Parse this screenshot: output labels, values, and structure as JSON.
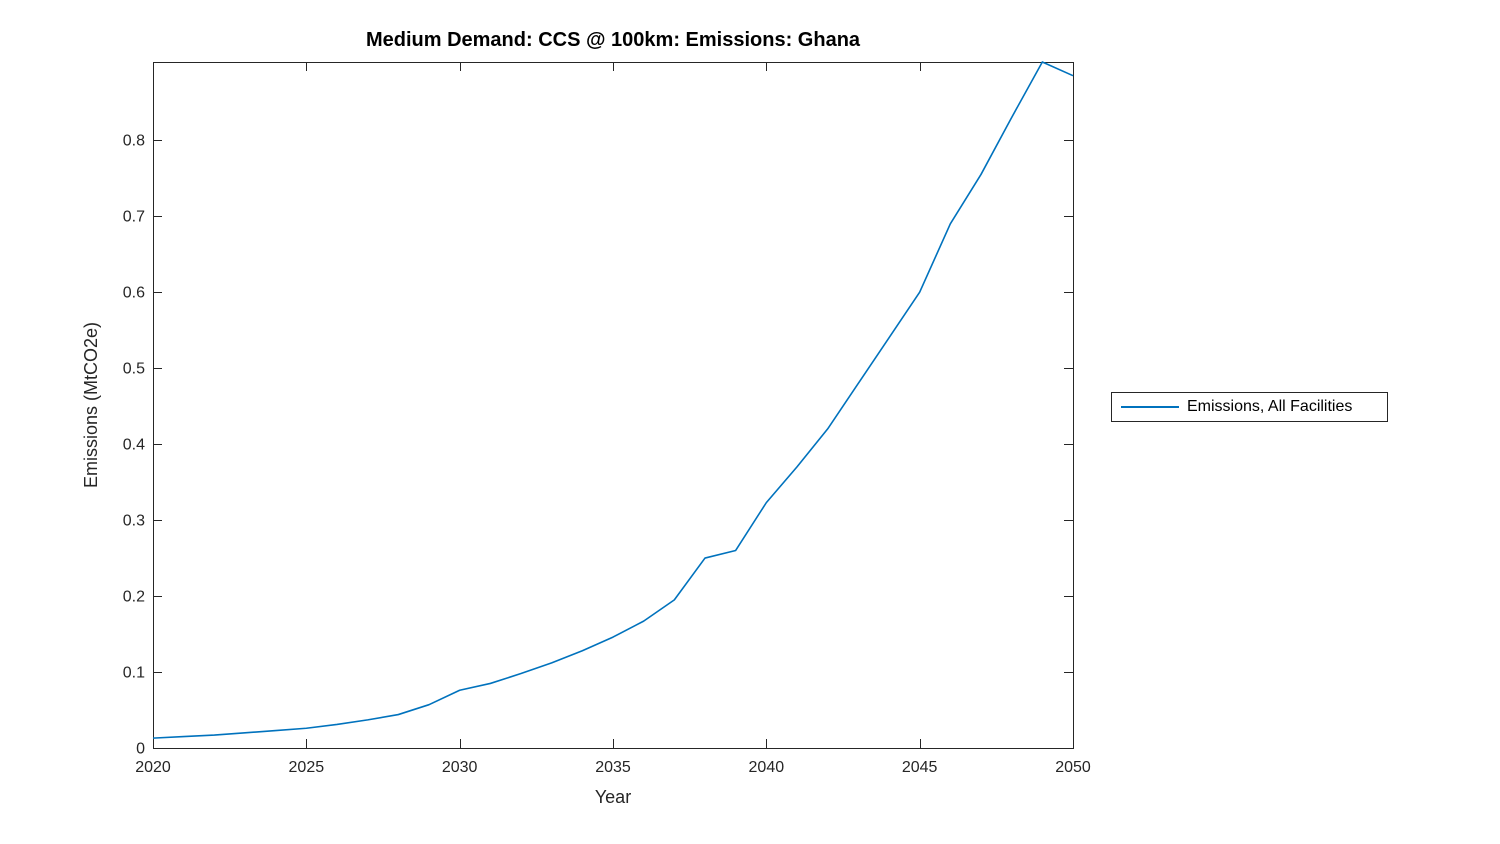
{
  "figure": {
    "background": "#ffffff"
  },
  "title": "Medium Demand: CCS @ 100km: Emissions: Ghana",
  "legend": {
    "label": "Emissions, All Facilities"
  },
  "colors": {
    "line": "#0072BD",
    "axis": "#262626",
    "title_text": "#000000",
    "background": "#ffffff"
  },
  "chart_data": {
    "type": "line",
    "title": "Medium Demand: CCS @ 100km: Emissions: Ghana",
    "xlabel": "Year",
    "ylabel": "Emissions (MtCO2e)",
    "xlim": [
      2020,
      2050
    ],
    "ylim": [
      0,
      0.903
    ],
    "xticks": [
      2020,
      2025,
      2030,
      2035,
      2040,
      2045,
      2050
    ],
    "xtick_labels": [
      "2020",
      "2025",
      "2030",
      "2035",
      "2040",
      "2045",
      "2050"
    ],
    "yticks": [
      0,
      0.1,
      0.2,
      0.3,
      0.4,
      0.5,
      0.6,
      0.7,
      0.8
    ],
    "ytick_labels": [
      "0",
      "0.1",
      "0.2",
      "0.3",
      "0.4",
      "0.5",
      "0.6",
      "0.7",
      "0.8"
    ],
    "grid": false,
    "legend_position": "right-outside",
    "series": [
      {
        "name": "Emissions, All Facilities",
        "color": "#0072BD",
        "x": [
          2020,
          2021,
          2022,
          2023,
          2024,
          2025,
          2026,
          2027,
          2028,
          2029,
          2030,
          2031,
          2032,
          2033,
          2034,
          2035,
          2036,
          2037,
          2038,
          2039,
          2040,
          2041,
          2042,
          2043,
          2044,
          2045,
          2046,
          2047,
          2048,
          2049,
          2050
        ],
        "y": [
          0.013,
          0.015,
          0.017,
          0.02,
          0.023,
          0.026,
          0.031,
          0.037,
          0.044,
          0.057,
          0.076,
          0.085,
          0.098,
          0.112,
          0.128,
          0.146,
          0.167,
          0.195,
          0.25,
          0.26,
          0.323,
          0.37,
          0.42,
          0.48,
          0.54,
          0.6,
          0.69,
          0.755,
          0.83,
          0.903,
          0.885
        ]
      }
    ]
  }
}
